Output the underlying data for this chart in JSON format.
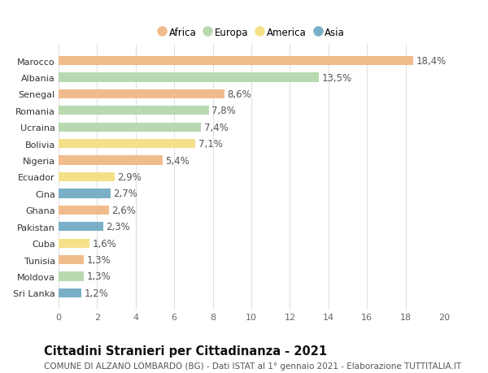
{
  "countries": [
    "Sri Lanka",
    "Moldova",
    "Tunisia",
    "Cuba",
    "Pakistan",
    "Ghana",
    "Cina",
    "Ecuador",
    "Nigeria",
    "Bolivia",
    "Ucraina",
    "Romania",
    "Senegal",
    "Albania",
    "Marocco"
  ],
  "values": [
    1.2,
    1.3,
    1.3,
    1.6,
    2.3,
    2.6,
    2.7,
    2.9,
    5.4,
    7.1,
    7.4,
    7.8,
    8.6,
    13.5,
    18.4
  ],
  "continents": [
    "Asia",
    "Europa",
    "Africa",
    "America",
    "Asia",
    "Africa",
    "Asia",
    "America",
    "Africa",
    "America",
    "Europa",
    "Europa",
    "Africa",
    "Europa",
    "Africa"
  ],
  "colors": {
    "Africa": "#F0BC8C",
    "Europa": "#B8D9B0",
    "America": "#F5E08A",
    "Asia": "#7AAFC8"
  },
  "title": "Cittadini Stranieri per Cittadinanza - 2021",
  "subtitle": "COMUNE DI ALZANO LOMBARDO (BG) - Dati ISTAT al 1° gennaio 2021 - Elaborazione TUTTITALIA.IT",
  "xlim": [
    0,
    20
  ],
  "xticks": [
    0,
    2,
    4,
    6,
    8,
    10,
    12,
    14,
    16,
    18,
    20
  ],
  "background_color": "#ffffff",
  "grid_color": "#e0e0e0",
  "bar_height": 0.55,
  "label_fontsize": 8.5,
  "tick_fontsize": 8,
  "title_fontsize": 10.5,
  "subtitle_fontsize": 7.5,
  "legend_order": [
    "Africa",
    "Europa",
    "America",
    "Asia"
  ]
}
